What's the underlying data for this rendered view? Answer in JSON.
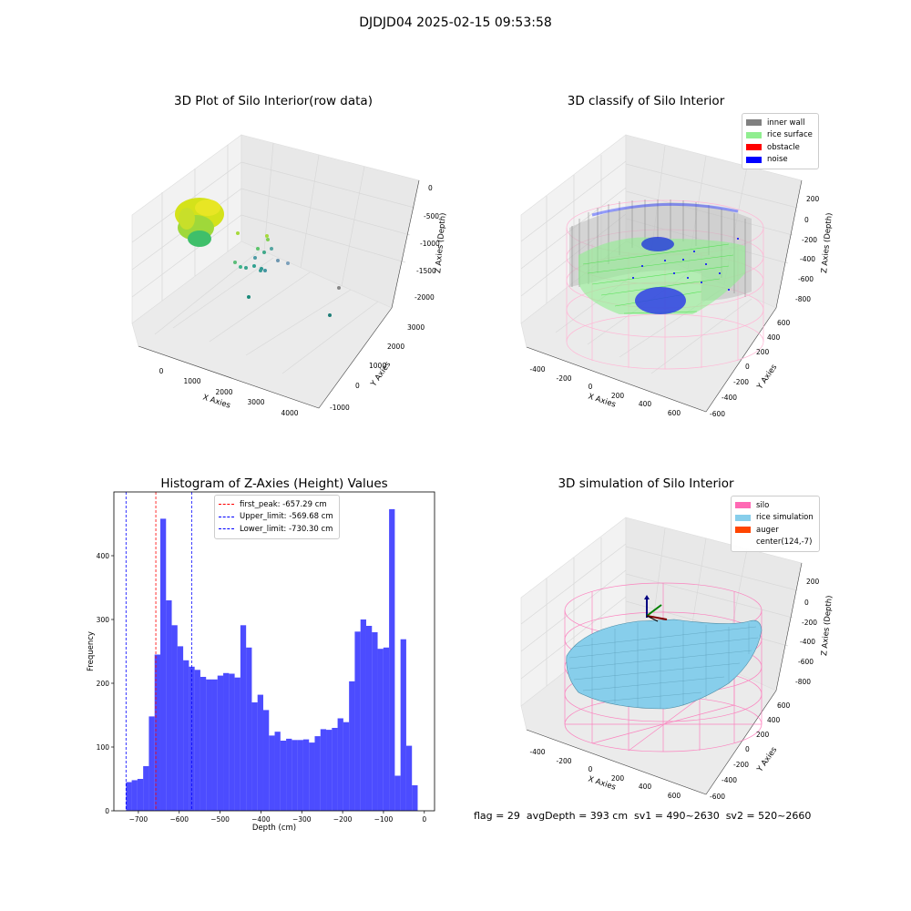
{
  "figure": {
    "suptitle": "DJDJD04 2025-02-15 09:53:58",
    "status_line": "flag = 29  avgDepth = 393 cm  sv1 = 490~2630  sv2 = 520~2660"
  },
  "panels": {
    "raw": {
      "title": "3D Plot of Silo Interior(row data)",
      "xlabel": "X Axies",
      "ylabel": "Y Axies",
      "zlabel": "Z Axies (Depth)",
      "xticks": [
        "0",
        "1000",
        "2000",
        "3000",
        "4000"
      ],
      "yticks": [
        "-1000",
        "0",
        "1000",
        "2000",
        "3000"
      ],
      "zticks": [
        "0",
        "-500",
        "-1000",
        "-1500",
        "-2000"
      ]
    },
    "classify": {
      "title": "3D classify of Silo Interior",
      "xlabel": "X Axies",
      "ylabel": "Y Axies",
      "zlabel": "Z Axies (Depth)",
      "xticks": [
        "-400",
        "-200",
        "0",
        "200",
        "400",
        "600"
      ],
      "yticks": [
        "-600",
        "-400",
        "-200",
        "0",
        "200",
        "400",
        "600"
      ],
      "zticks": [
        "200",
        "0",
        "-200",
        "-400",
        "-600",
        "-800"
      ],
      "legend": [
        {
          "label": "inner wall",
          "color": "#808080"
        },
        {
          "label": "rice surface",
          "color": "#90ee90"
        },
        {
          "label": "obstacle",
          "color": "#ff0000"
        },
        {
          "label": "noise",
          "color": "#0000ff"
        }
      ]
    },
    "simulation": {
      "title": "3D simulation of Silo Interior",
      "xlabel": "X Axies",
      "ylabel": "Y Axies",
      "zlabel": "Z Axies (Depth)",
      "xticks": [
        "-400",
        "-200",
        "0",
        "200",
        "400",
        "600"
      ],
      "yticks": [
        "-600",
        "-400",
        "-200",
        "0",
        "200",
        "400",
        "600"
      ],
      "zticks": [
        "200",
        "0",
        "-200",
        "-400",
        "-600",
        "-800"
      ],
      "legend": [
        {
          "label": "silo",
          "color": "#ff69b4"
        },
        {
          "label": "rice simulation",
          "color": "#87ceeb"
        },
        {
          "label": "auger",
          "color": "#ff4500"
        },
        {
          "label": "center(124,-7)",
          "color": "#ffffff"
        }
      ]
    }
  },
  "chart_data": {
    "type": "bar",
    "title": "Histogram of Z-Axies (Height) Values",
    "xlabel": "Depth (cm)",
    "ylabel": "Frequency",
    "xlim": [
      -760,
      25
    ],
    "ylim": [
      0,
      500
    ],
    "bar_color": "#0000ff",
    "x_ticks": [
      -700,
      -600,
      -500,
      -400,
      -300,
      -200,
      -100,
      0
    ],
    "y_ticks": [
      0,
      100,
      200,
      300,
      400
    ],
    "bins": [
      {
        "start": -730.3,
        "end": -716.3,
        "count": 45
      },
      {
        "start": -716.3,
        "end": -702.3,
        "count": 48
      },
      {
        "start": -702.3,
        "end": -688.3,
        "count": 50
      },
      {
        "start": -688.3,
        "end": -674.3,
        "count": 70
      },
      {
        "start": -674.3,
        "end": -660.3,
        "count": 148
      },
      {
        "start": -660.3,
        "end": -646.3,
        "count": 245
      },
      {
        "start": -646.3,
        "end": -632.3,
        "count": 458
      },
      {
        "start": -632.3,
        "end": -618.3,
        "count": 330
      },
      {
        "start": -618.3,
        "end": -604.3,
        "count": 291
      },
      {
        "start": -604.3,
        "end": -590.3,
        "count": 258
      },
      {
        "start": -590.3,
        "end": -576.3,
        "count": 236
      },
      {
        "start": -576.3,
        "end": -562.3,
        "count": 226
      },
      {
        "start": -562.3,
        "end": -548.3,
        "count": 221
      },
      {
        "start": -548.3,
        "end": -534.3,
        "count": 210
      },
      {
        "start": -534.3,
        "end": -520.3,
        "count": 206
      },
      {
        "start": -520.3,
        "end": -506.3,
        "count": 206
      },
      {
        "start": -506.3,
        "end": -492.3,
        "count": 212
      },
      {
        "start": -492.3,
        "end": -478.3,
        "count": 216
      },
      {
        "start": -478.3,
        "end": -464.3,
        "count": 215
      },
      {
        "start": -464.3,
        "end": -450.3,
        "count": 209
      },
      {
        "start": -450.3,
        "end": -436.3,
        "count": 291
      },
      {
        "start": -436.3,
        "end": -422.3,
        "count": 256
      },
      {
        "start": -422.3,
        "end": -408.3,
        "count": 170
      },
      {
        "start": -408.3,
        "end": -394.3,
        "count": 182
      },
      {
        "start": -394.3,
        "end": -380.3,
        "count": 158
      },
      {
        "start": -380.3,
        "end": -366.3,
        "count": 118
      },
      {
        "start": -366.3,
        "end": -352.3,
        "count": 124
      },
      {
        "start": -352.3,
        "end": -338.3,
        "count": 110
      },
      {
        "start": -338.3,
        "end": -324.3,
        "count": 113
      },
      {
        "start": -324.3,
        "end": -310.3,
        "count": 111
      },
      {
        "start": -310.3,
        "end": -296.3,
        "count": 111
      },
      {
        "start": -296.3,
        "end": -282.3,
        "count": 112
      },
      {
        "start": -282.3,
        "end": -268.3,
        "count": 107
      },
      {
        "start": -268.3,
        "end": -254.3,
        "count": 117
      },
      {
        "start": -254.3,
        "end": -240.3,
        "count": 128
      },
      {
        "start": -240.3,
        "end": -226.3,
        "count": 127
      },
      {
        "start": -226.3,
        "end": -212.3,
        "count": 130
      },
      {
        "start": -212.3,
        "end": -198.3,
        "count": 145
      },
      {
        "start": -198.3,
        "end": -184.3,
        "count": 139
      },
      {
        "start": -184.3,
        "end": -170.3,
        "count": 203
      },
      {
        "start": -170.3,
        "end": -156.3,
        "count": 281
      },
      {
        "start": -156.3,
        "end": -142.3,
        "count": 300
      },
      {
        "start": -142.3,
        "end": -128.3,
        "count": 290
      },
      {
        "start": -128.3,
        "end": -114.3,
        "count": 280
      },
      {
        "start": -114.3,
        "end": -100.3,
        "count": 254
      },
      {
        "start": -100.3,
        "end": -86.3,
        "count": 256
      },
      {
        "start": -86.3,
        "end": -72.3,
        "count": 473
      },
      {
        "start": -72.3,
        "end": -58.3,
        "count": 55
      },
      {
        "start": -58.3,
        "end": -44.3,
        "count": 269
      },
      {
        "start": -44.3,
        "end": -30.3,
        "count": 102
      },
      {
        "start": -30.3,
        "end": -16.3,
        "count": 40
      }
    ],
    "reference_lines": [
      {
        "label": "first_peak: -657.29 cm",
        "x": -657.29,
        "color": "#ff0000"
      },
      {
        "label": "Upper_limit: -569.68 cm",
        "x": -569.68,
        "color": "#0000ff"
      },
      {
        "label": "Lower_limit: -730.30 cm",
        "x": -730.3,
        "color": "#0000ff"
      }
    ]
  }
}
